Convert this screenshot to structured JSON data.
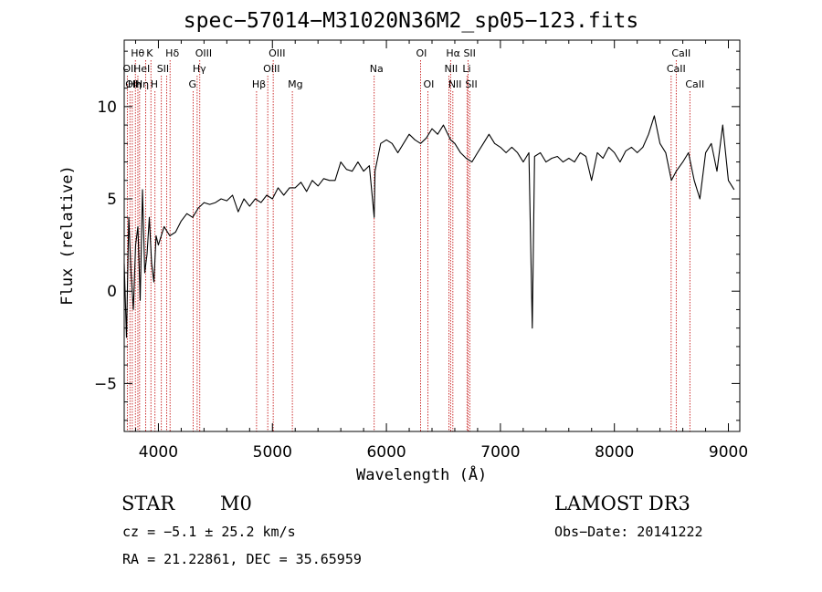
{
  "chart_data": {
    "type": "line",
    "title": "spec−57014−M31020N36M2_sp05−123.fits",
    "xlabel": "Wavelength (Å)",
    "ylabel": "Flux (relative)",
    "xlim": [
      3700,
      9100
    ],
    "ylim": [
      -7.6,
      13.6
    ],
    "xticks": [
      4000,
      5000,
      6000,
      7000,
      8000,
      9000
    ],
    "xtick_labels": [
      "4000",
      "5000",
      "6000",
      "7000",
      "8000",
      "9000"
    ],
    "yticks": [
      -5,
      0,
      5,
      10
    ],
    "ytick_labels": [
      "−5",
      "0",
      "5",
      "10"
    ],
    "series": [
      {
        "name": "flux",
        "x": [
          3700,
          3720,
          3740,
          3760,
          3780,
          3800,
          3820,
          3840,
          3860,
          3880,
          3900,
          3920,
          3940,
          3960,
          3980,
          4000,
          4050,
          4100,
          4150,
          4200,
          4250,
          4300,
          4350,
          4400,
          4450,
          4500,
          4550,
          4600,
          4650,
          4700,
          4750,
          4800,
          4850,
          4900,
          4950,
          5000,
          5050,
          5100,
          5150,
          5200,
          5250,
          5300,
          5350,
          5400,
          5450,
          5500,
          5550,
          5600,
          5650,
          5700,
          5750,
          5800,
          5850,
          5893,
          5900,
          5950,
          6000,
          6050,
          6100,
          6150,
          6200,
          6250,
          6300,
          6350,
          6400,
          6450,
          6500,
          6563,
          6600,
          6650,
          6700,
          6750,
          6800,
          6850,
          6900,
          6950,
          7000,
          7050,
          7100,
          7150,
          7200,
          7250,
          7280,
          7300,
          7350,
          7400,
          7450,
          7500,
          7550,
          7600,
          7650,
          7700,
          7750,
          7800,
          7850,
          7900,
          7950,
          8000,
          8050,
          8100,
          8150,
          8200,
          8250,
          8300,
          8350,
          8400,
          8450,
          8500,
          8542,
          8600,
          8650,
          8700,
          8750,
          8800,
          8850,
          8900,
          8950,
          9000,
          9050
        ],
        "values": [
          1.5,
          -2.5,
          4.0,
          1.0,
          -1.0,
          2.5,
          3.5,
          -0.5,
          5.5,
          1.0,
          2.0,
          4.0,
          1.5,
          0.5,
          3.0,
          2.5,
          3.5,
          3.0,
          3.2,
          3.8,
          4.2,
          4.0,
          4.5,
          4.8,
          4.7,
          4.8,
          5.0,
          4.9,
          5.2,
          4.3,
          5.0,
          4.6,
          5.0,
          4.8,
          5.2,
          5.0,
          5.6,
          5.2,
          5.6,
          5.6,
          5.9,
          5.4,
          6.0,
          5.7,
          6.1,
          6.0,
          6.0,
          7.0,
          6.6,
          6.5,
          7.0,
          6.5,
          6.8,
          4.0,
          6.5,
          8.0,
          8.2,
          8.0,
          7.5,
          8.0,
          8.5,
          8.2,
          8.0,
          8.3,
          8.8,
          8.5,
          9.0,
          8.2,
          8.0,
          7.5,
          7.2,
          7.0,
          7.5,
          8.0,
          8.5,
          8.0,
          7.8,
          7.5,
          7.8,
          7.5,
          7.0,
          7.5,
          -2.0,
          7.3,
          7.5,
          7.0,
          7.2,
          7.3,
          7.0,
          7.2,
          7.0,
          7.5,
          7.3,
          6.0,
          7.5,
          7.2,
          7.8,
          7.5,
          7.0,
          7.6,
          7.8,
          7.5,
          7.8,
          8.5,
          9.5,
          8.0,
          7.5,
          6.0,
          6.5,
          7.0,
          7.5,
          6.0,
          5.0,
          7.5,
          8.0,
          6.5,
          9.0,
          6.0,
          5.5
        ]
      }
    ],
    "lines": [
      {
        "x": 3727,
        "label": "OII",
        "row": 1
      },
      {
        "x": 3750,
        "label": "OII",
        "row": 2
      },
      {
        "x": 3771,
        "label": "Hη",
        "row": 2
      },
      {
        "x": 3798,
        "label": "Hθ",
        "row": 0
      },
      {
        "x": 3820,
        "label": "HeI",
        "row": 1
      },
      {
        "x": 3835,
        "label": "Hη",
        "row": 2
      },
      {
        "x": 3889,
        "label": "",
        "row": 0
      },
      {
        "x": 3934,
        "label": "K",
        "row": 0
      },
      {
        "x": 3970,
        "label": "H",
        "row": 2
      },
      {
        "x": 4026,
        "label": "SII",
        "row": 1
      },
      {
        "x": 4072,
        "label": "",
        "row": 1
      },
      {
        "x": 4102,
        "label": "Hδ",
        "row": 0
      },
      {
        "x": 4305,
        "label": "G",
        "row": 2
      },
      {
        "x": 4340,
        "label": "Hγ",
        "row": 1
      },
      {
        "x": 4363,
        "label": "OIII",
        "row": 0
      },
      {
        "x": 4861,
        "label": "Hβ",
        "row": 2
      },
      {
        "x": 4959,
        "label": "OIII",
        "row": 1
      },
      {
        "x": 5007,
        "label": "OIII",
        "row": 0
      },
      {
        "x": 5175,
        "label": "Mg",
        "row": 2
      },
      {
        "x": 5893,
        "label": "Na",
        "row": 1
      },
      {
        "x": 6300,
        "label": "OI",
        "row": 0
      },
      {
        "x": 6364,
        "label": "OI",
        "row": 2
      },
      {
        "x": 6548,
        "label": "NII",
        "row": 1
      },
      {
        "x": 6563,
        "label": "Hα",
        "row": 0
      },
      {
        "x": 6583,
        "label": "NII",
        "row": 2
      },
      {
        "x": 6707,
        "label": "Li",
        "row": 1
      },
      {
        "x": 6716,
        "label": "SII",
        "row": 0
      },
      {
        "x": 6731,
        "label": "SII",
        "row": 2
      },
      {
        "x": 8498,
        "label": "CaII",
        "row": 1
      },
      {
        "x": 8542,
        "label": "CaII",
        "row": 0
      },
      {
        "x": 8662,
        "label": "CaII",
        "row": 2
      }
    ]
  },
  "info": {
    "class": "STAR",
    "subclass": "M0",
    "survey": "LAMOST DR3",
    "cz": "cz = −5.1 ± 25.2 km/s",
    "obsdate": "Obs−Date: 20141222",
    "radec": "RA =  21.22861, DEC =  35.65959"
  }
}
